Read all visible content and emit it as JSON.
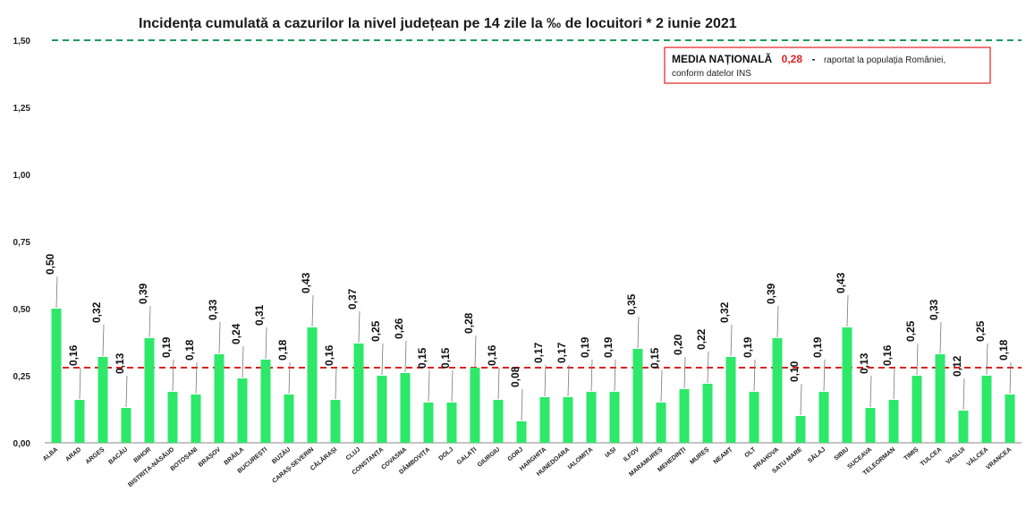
{
  "chart_data": {
    "type": "bar",
    "title": "Incidența cumulată a cazurilor la nivel județean pe 14 zile la ‰ de locuitori *  2 iunie 2021",
    "ylim": [
      0,
      1.5
    ],
    "yticks": [
      "0,00",
      "0,25",
      "0,50",
      "0,75",
      "1,00",
      "1,25",
      "1,50"
    ],
    "ytick_values": [
      0,
      0.25,
      0.5,
      0.75,
      1.0,
      1.25,
      1.5
    ],
    "grid": false,
    "categories": [
      "ALBA",
      "ARAD",
      "ARGEȘ",
      "BACĂU",
      "BIHOR",
      "BISTRIȚA-NĂSĂUD",
      "BOTOȘANI",
      "BRAȘOV",
      "BRĂILA",
      "BUCUREȘTI",
      "BUZĂU",
      "CARAȘ-SEVERIN",
      "CĂLĂRAȘI",
      "CLUJ",
      "CONSTANȚA",
      "COVASNA",
      "DÂMBOVIȚA",
      "DOLJ",
      "GALAȚI",
      "GIURGIU",
      "GORJ",
      "HARGHITA",
      "HUNEDOARA",
      "IALOMIȚA",
      "IAȘI",
      "ILFOV",
      "MARAMUREȘ",
      "MEHEDINȚI",
      "MUREȘ",
      "NEAMȚ",
      "OLT",
      "PRAHOVA",
      "SATU MARE",
      "SĂLAJ",
      "SIBIU",
      "SUCEAVA",
      "TELEORMAN",
      "TIMIȘ",
      "TULCEA",
      "VASLUI",
      "VÂLCEA",
      "VRANCEA"
    ],
    "values": [
      0.5,
      0.16,
      0.32,
      0.13,
      0.39,
      0.19,
      0.18,
      0.33,
      0.24,
      0.31,
      0.18,
      0.43,
      0.16,
      0.37,
      0.25,
      0.26,
      0.15,
      0.15,
      0.28,
      0.16,
      0.08,
      0.17,
      0.17,
      0.19,
      0.19,
      0.35,
      0.15,
      0.2,
      0.22,
      0.32,
      0.19,
      0.39,
      0.1,
      0.19,
      0.43,
      0.13,
      0.16,
      0.25,
      0.33,
      0.12,
      0.25,
      0.18
    ],
    "value_labels": [
      "0,50",
      "0,16",
      "0,32",
      "0,13",
      "0,39",
      "0,19",
      "0,18",
      "0,33",
      "0,24",
      "0,31",
      "0,18",
      "0,43",
      "0,16",
      "0,37",
      "0,25",
      "0,26",
      "0,15",
      "0,15",
      "0,28",
      "0,16",
      "0,08",
      "0,17",
      "0,17",
      "0,19",
      "0,19",
      "0,35",
      "0,15",
      "0,20",
      "0,22",
      "0,32",
      "0,19",
      "0,39",
      "0,10",
      "0,19",
      "0,43",
      "0,13",
      "0,16",
      "0,25",
      "0,33",
      "0,12",
      "0,25",
      "0,18"
    ],
    "reference_lines": [
      {
        "value": 1.5,
        "color": "#1a9a5a",
        "style": "dashed"
      },
      {
        "value": 0.28,
        "color": "#e02020",
        "style": "dashed"
      }
    ],
    "bar_color": "#2ee86a",
    "annotation": {
      "label": "MEDIA NAȚIONALĂ",
      "value": "0,28",
      "separator": "-",
      "text_line1": "raportat la populația României,",
      "text_line2": "conform datelor INS",
      "value_color": "#e02020",
      "border_color": "#e02020"
    }
  }
}
